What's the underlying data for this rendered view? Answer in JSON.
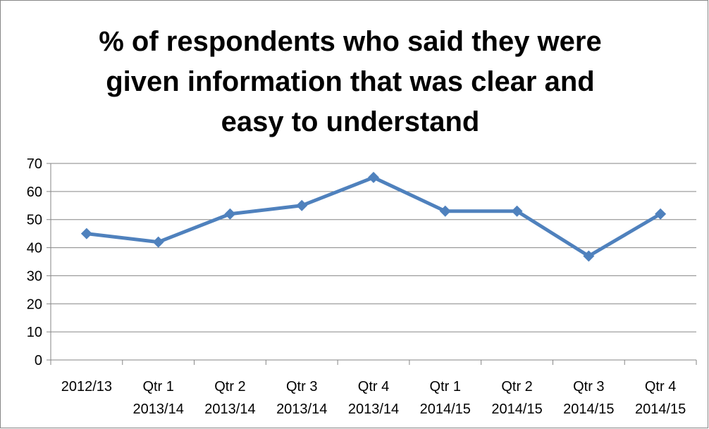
{
  "chart_data": {
    "type": "line",
    "title": "% of respondents who said they were\ngiven information that was clear and\neasy to understand",
    "categories": [
      "2012/13",
      "Qtr 1\n2013/14",
      "Qtr 2\n2013/14",
      "Qtr 3\n2013/14",
      "Qtr 4\n2013/14",
      "Qtr 1\n2014/15",
      "Qtr 2\n2014/15",
      "Qtr 3\n2014/15",
      "Qtr 4\n2014/15"
    ],
    "values": [
      45,
      42,
      52,
      55,
      65,
      53,
      53,
      37,
      52
    ],
    "color": "#4f81bd",
    "ylim": [
      0,
      70
    ],
    "yticks": [
      0,
      10,
      20,
      30,
      40,
      50,
      60,
      70
    ],
    "grid": true
  }
}
